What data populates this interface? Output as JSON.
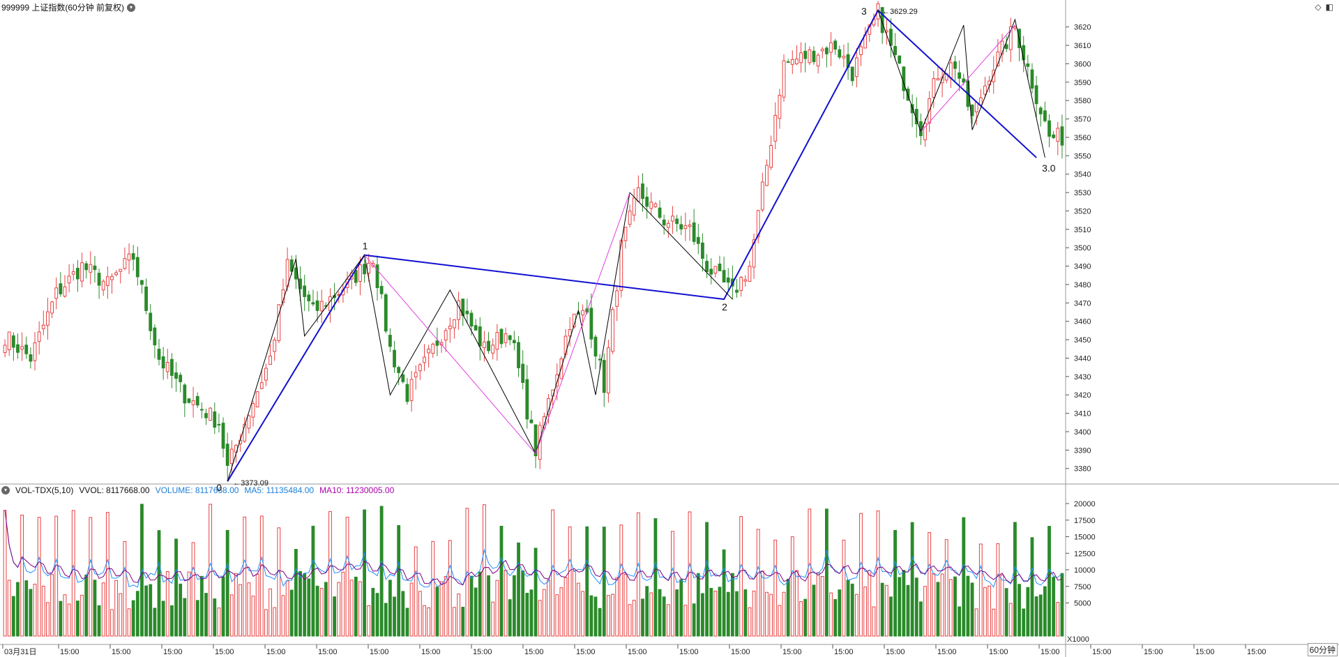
{
  "header": {
    "title": "999999 上证指数(60分钟 前复权)"
  },
  "top_right_icons": [
    "diamond-icon",
    "panel-toggle-icon"
  ],
  "volume_header": {
    "indicator": "VOL-TDX(5,10)",
    "vvol": "VVOL: 8117668.00",
    "volume": "VOLUME: 8117668.00",
    "ma5": "MA5: 11135484.00",
    "ma10": "MA10: 11230005.00"
  },
  "bottom_right_label": "60分钟",
  "scale_unit": "X1000",
  "colors": {
    "up": "#e84040",
    "down": "#2a8a2a",
    "wave_main": "#1010d0",
    "wave_sub": "#000000",
    "wave_alt": "#e040e0",
    "ma5": "#1e90ff",
    "ma10": "#800080"
  },
  "chart_data": [
    {
      "type": "candlestick",
      "title": "999999 上证指数(60分钟 前复权)",
      "ylim": [
        3370,
        3630
      ],
      "y_ticks": [
        3380,
        3390,
        3400,
        3410,
        3420,
        3430,
        3440,
        3450,
        3460,
        3470,
        3480,
        3490,
        3500,
        3510,
        3520,
        3530,
        3540,
        3550,
        3560,
        3570,
        3580,
        3590,
        3600,
        3610,
        3620
      ],
      "x_tick_labels": [
        "03月31日",
        "15:00",
        "15:00",
        "15:00",
        "15:00",
        "15:00",
        "15:00",
        "15:00",
        "15:00",
        "15:00",
        "15:00",
        "15:00",
        "15:00",
        "15:00",
        "15:00",
        "15:00",
        "15:00",
        "15:00",
        "15:00",
        "15:00",
        "15:00",
        "15:00",
        "15:00",
        "15:00",
        "15:00"
      ],
      "annotations": {
        "low_price": "3373.09",
        "high_price": "3629.29",
        "wave_labels": [
          "0",
          "1",
          "2",
          "3",
          "3.0"
        ]
      },
      "wave_points_main": [
        [
          0,
          3373
        ],
        [
          1,
          3496
        ],
        [
          2,
          3472
        ],
        [
          3,
          3629
        ],
        [
          4,
          3549
        ]
      ],
      "close_anchors": [
        [
          0,
          3452
        ],
        [
          6,
          3440
        ],
        [
          12,
          3475
        ],
        [
          18,
          3490
        ],
        [
          24,
          3480
        ],
        [
          30,
          3495
        ],
        [
          36,
          3440
        ],
        [
          42,
          3420
        ],
        [
          50,
          3405
        ],
        [
          52,
          3380
        ],
        [
          56,
          3405
        ],
        [
          62,
          3440
        ],
        [
          66,
          3490
        ],
        [
          72,
          3465
        ],
        [
          80,
          3480
        ],
        [
          86,
          3495
        ],
        [
          90,
          3445
        ],
        [
          94,
          3420
        ],
        [
          100,
          3445
        ],
        [
          106,
          3470
        ],
        [
          112,
          3445
        ],
        [
          118,
          3455
        ],
        [
          124,
          3390
        ],
        [
          132,
          3460
        ],
        [
          136,
          3465
        ],
        [
          140,
          3425
        ],
        [
          144,
          3500
        ],
        [
          148,
          3530
        ],
        [
          154,
          3515
        ],
        [
          160,
          3510
        ],
        [
          164,
          3490
        ],
        [
          170,
          3475
        ],
        [
          174,
          3490
        ],
        [
          178,
          3545
        ],
        [
          182,
          3600
        ],
        [
          188,
          3605
        ],
        [
          194,
          3610
        ],
        [
          198,
          3595
        ],
        [
          204,
          3628
        ],
        [
          210,
          3590
        ],
        [
          214,
          3565
        ],
        [
          218,
          3595
        ],
        [
          222,
          3600
        ],
        [
          226,
          3570
        ],
        [
          230,
          3595
        ],
        [
          236,
          3620
        ],
        [
          240,
          3590
        ],
        [
          244,
          3560
        ],
        [
          247,
          3560
        ]
      ]
    },
    {
      "type": "bar",
      "title": "VOL-TDX(5,10)",
      "ylim": [
        0,
        22500
      ],
      "y_ticks": [
        5000,
        7500,
        10000,
        12500,
        15000,
        17500,
        20000
      ],
      "series": [
        {
          "name": "VOLUME"
        },
        {
          "name": "MA5"
        },
        {
          "name": "MA10"
        }
      ]
    }
  ]
}
